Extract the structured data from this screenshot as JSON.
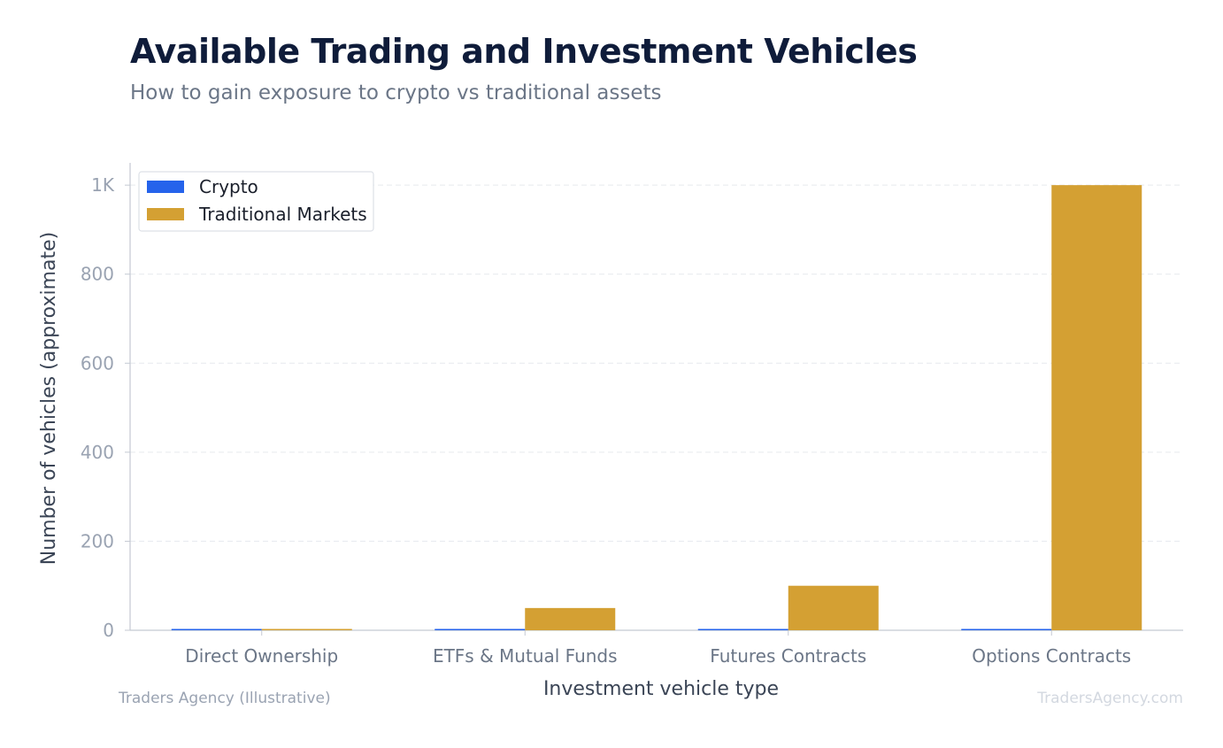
{
  "header": {
    "title": "Available Trading and Investment Vehicles",
    "subtitle": "How to gain exposure to crypto vs traditional assets"
  },
  "footer": {
    "source": "Traders Agency (Illustrative)",
    "watermark": "TradersAgency.com"
  },
  "colors": {
    "crypto": "#2563eb",
    "traditional": "#d4a033",
    "axis_text": "#9aa3b2",
    "label_text": "#3b4556",
    "grid": "#e6e9ee"
  },
  "chart_data": {
    "type": "bar",
    "title": "Available Trading and Investment Vehicles",
    "subtitle": "How to gain exposure to crypto vs traditional assets",
    "xlabel": "Investment vehicle type",
    "ylabel": "Number of vehicles (approximate)",
    "categories": [
      "Direct Ownership",
      "ETFs & Mutual Funds",
      "Futures Contracts",
      "Options Contracts"
    ],
    "series": [
      {
        "name": "Crypto",
        "values": [
          1,
          3,
          1,
          1
        ]
      },
      {
        "name": "Traditional Markets",
        "values": [
          1,
          50,
          100,
          1000
        ]
      }
    ],
    "ylim": [
      0,
      1050
    ],
    "yticks": [
      0,
      200,
      400,
      600,
      800,
      1000
    ],
    "ytick_labels": [
      "0",
      "200",
      "400",
      "600",
      "800",
      "1K"
    ],
    "grid": true,
    "legend_position": "top-left"
  }
}
